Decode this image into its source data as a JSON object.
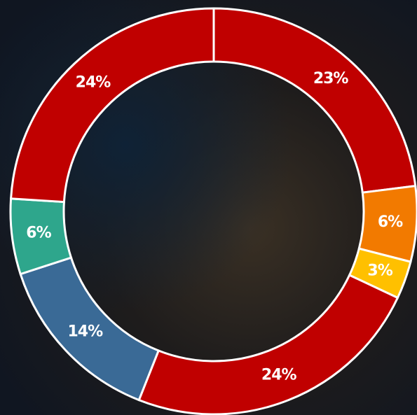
{
  "chart_data": {
    "type": "donut",
    "categories": [
      null,
      null,
      null,
      null,
      null,
      null,
      null
    ],
    "values": [
      23,
      6,
      3,
      24,
      14,
      6,
      24
    ],
    "value_labels": [
      "23%",
      "6%",
      "3%",
      "24%",
      "14%",
      "6%",
      "24%"
    ],
    "colors": [
      "#c00000",
      "#f27a00",
      "#ffc000",
      "#c00000",
      "#3a6a96",
      "#2ea68c",
      "#c00000"
    ]
  }
}
